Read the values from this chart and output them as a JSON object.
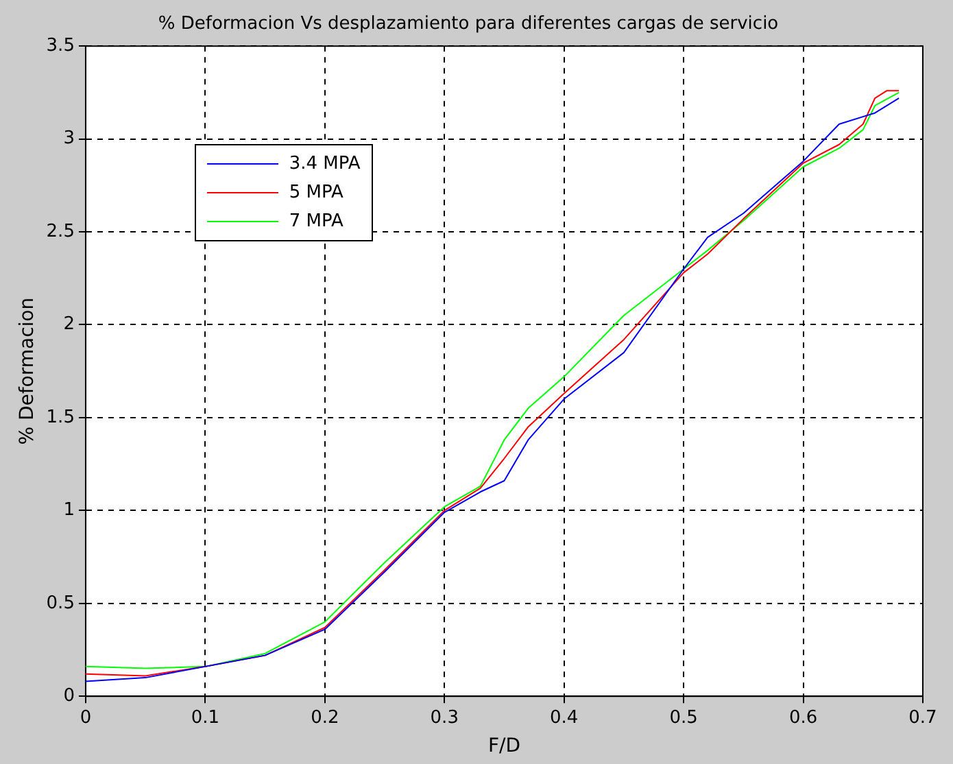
{
  "chart_data": {
    "type": "line",
    "title": "% Deformacion Vs desplazamiento para diferentes cargas de servicio",
    "xlabel": "F/D",
    "ylabel": "% Deformacion",
    "xlim": [
      0,
      0.7
    ],
    "xticks": [
      0,
      0.1,
      0.2,
      0.3,
      0.4,
      0.5,
      0.6,
      0.7
    ],
    "ylim": [
      0,
      3.5
    ],
    "yticks": [
      0,
      0.5,
      1,
      1.5,
      2,
      2.5,
      3,
      3.5
    ],
    "grid": true,
    "legend": "top left",
    "marker": "none",
    "line_style": "solid",
    "series": [
      {
        "name": "3.4 MPA",
        "color": "#0000ff",
        "x": [
          0,
          0.05,
          0.1,
          0.15,
          0.2,
          0.25,
          0.3,
          0.33,
          0.35,
          0.37,
          0.4,
          0.45,
          0.5,
          0.52,
          0.55,
          0.6,
          0.63,
          0.66,
          0.68
        ],
        "values": [
          0.08,
          0.1,
          0.16,
          0.22,
          0.36,
          0.67,
          0.99,
          1.1,
          1.16,
          1.38,
          1.6,
          1.85,
          2.3,
          2.47,
          2.6,
          2.88,
          3.08,
          3.14,
          3.22
        ]
      },
      {
        "name": "5 MPA",
        "color": "#ff0000",
        "x": [
          0,
          0.05,
          0.1,
          0.15,
          0.2,
          0.25,
          0.3,
          0.33,
          0.35,
          0.37,
          0.4,
          0.45,
          0.5,
          0.52,
          0.55,
          0.6,
          0.63,
          0.65,
          0.66,
          0.67,
          0.68
        ],
        "values": [
          0.12,
          0.11,
          0.16,
          0.22,
          0.37,
          0.68,
          1.0,
          1.12,
          1.28,
          1.45,
          1.63,
          1.92,
          2.28,
          2.38,
          2.57,
          2.87,
          2.97,
          3.08,
          3.22,
          3.26,
          3.26
        ]
      },
      {
        "name": "7 MPA",
        "color": "#00ff00",
        "x": [
          0,
          0.05,
          0.1,
          0.15,
          0.2,
          0.25,
          0.3,
          0.33,
          0.35,
          0.37,
          0.4,
          0.45,
          0.5,
          0.52,
          0.55,
          0.6,
          0.63,
          0.65,
          0.66,
          0.68
        ],
        "values": [
          0.16,
          0.15,
          0.16,
          0.23,
          0.4,
          0.72,
          1.02,
          1.13,
          1.38,
          1.55,
          1.72,
          2.05,
          2.3,
          2.4,
          2.56,
          2.85,
          2.95,
          3.05,
          3.18,
          3.25
        ]
      }
    ]
  }
}
